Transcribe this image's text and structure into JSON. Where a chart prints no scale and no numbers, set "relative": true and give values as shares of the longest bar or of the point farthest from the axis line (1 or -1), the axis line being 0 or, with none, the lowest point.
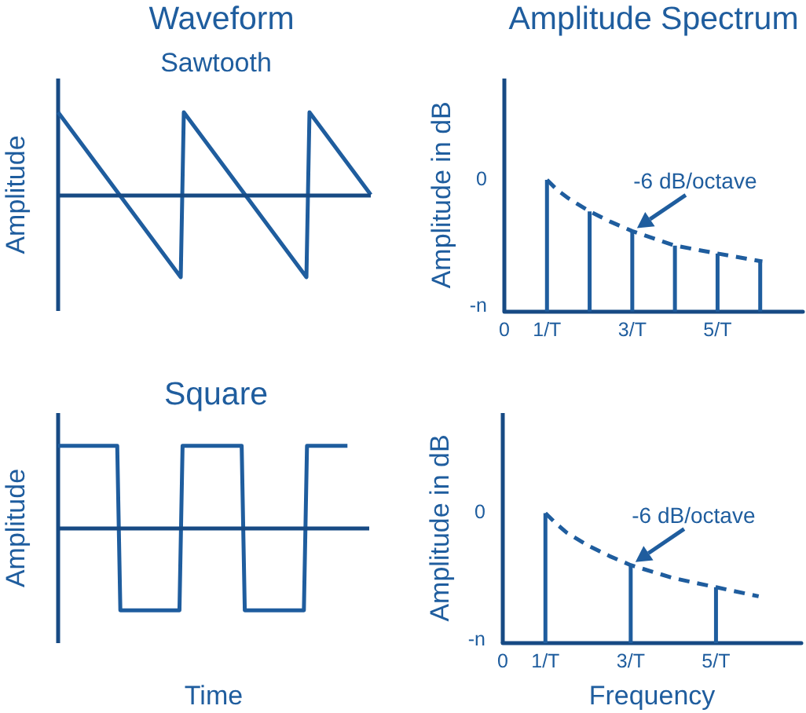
{
  "chart_data": [
    {
      "type": "line",
      "title": "Waveform",
      "subtitle": "Sawtooth",
      "ylabel": "Amplitude",
      "relative": true,
      "ref_lines": [
        {
          "axis": "y",
          "value": 0
        }
      ],
      "categories": [
        null,
        null,
        null,
        null,
        null,
        null,
        null,
        null,
        null,
        null,
        null,
        null,
        null,
        null,
        null,
        null,
        null,
        null,
        null,
        null,
        null,
        null,
        null,
        null,
        null,
        null,
        null,
        null,
        null,
        null,
        null,
        null,
        null,
        null,
        null,
        null,
        null,
        null,
        null,
        null,
        null,
        null,
        null,
        null,
        null,
        null,
        null,
        null,
        null,
        null,
        null,
        null,
        null,
        null,
        null,
        null,
        null,
        null,
        null,
        null,
        null,
        null,
        null,
        null,
        null,
        null,
        null,
        null,
        null,
        null,
        null,
        null,
        null,
        null,
        null,
        null,
        null,
        null,
        null,
        null,
        null,
        null,
        null,
        null,
        null,
        null,
        null,
        null,
        null,
        null,
        null,
        null,
        null,
        null,
        null,
        null,
        null,
        null,
        null,
        null,
        null,
        null,
        null
      ],
      "series": [
        {
          "color": "#1f5d9e",
          "values": [
            1,
            0.95,
            0.9,
            0.85,
            0.8,
            0.75,
            0.7,
            0.65,
            0.6,
            0.55,
            0.5,
            0.45,
            0.4,
            0.35,
            0.3,
            0.25,
            0.2,
            0.15,
            0.1,
            0.05,
            0,
            -0.05,
            -0.1,
            -0.15,
            -0.2,
            -0.25,
            -0.3,
            -0.35,
            -0.4,
            -0.45,
            -0.5,
            -0.55,
            -0.6,
            -0.65,
            -0.7,
            -0.75,
            -0.8,
            -0.85,
            -0.9,
            -0.95,
            -1,
            1,
            0.95,
            0.9,
            0.85,
            0.8,
            0.75,
            0.7,
            0.65,
            0.6,
            0.55,
            0.5,
            0.45,
            0.4,
            0.35,
            0.3,
            0.25,
            0.2,
            0.15,
            0.1,
            0.05,
            0,
            -0.05,
            -0.1,
            -0.15,
            -0.2,
            -0.25,
            -0.3,
            -0.35,
            -0.4,
            -0.45,
            -0.5,
            -0.55,
            -0.6,
            -0.65,
            -0.7,
            -0.75,
            -0.8,
            -0.85,
            -0.9,
            -0.95,
            -1,
            1,
            0.95,
            0.9,
            0.85,
            0.8,
            0.75,
            0.7,
            0.65,
            0.6,
            0.55,
            0.5,
            0.45,
            0.4,
            0.35,
            0.3,
            0.25,
            0.2,
            0.15,
            0.1,
            0.05,
            0
          ]
        }
      ]
    },
    {
      "type": "bar",
      "title": "Amplitude Spectrum",
      "ylabel": "Amplitude in dB",
      "relative": true,
      "x": [
        1,
        2,
        3,
        4,
        5,
        6
      ],
      "xlim": [
        0,
        7
      ],
      "xticks": [
        0,
        {
          "value": 1,
          "label": "1/T"
        },
        {
          "value": 3,
          "label": "3/T"
        },
        {
          "value": 5,
          "label": "5/T"
        }
      ],
      "line_style": "dashed",
      "series": [
        {
          "color": "#1f5d9e",
          "values": [
            1,
            0.76,
            0.61,
            0.5,
            0.44,
            0.38
          ]
        },
        {
          "type": "line",
          "color": "#1f5d9e",
          "x": [
            1,
            1.25,
            1.5,
            2,
            2.5,
            3,
            4,
            5,
            6.05
          ],
          "values": [
            1,
            0.92,
            0.86,
            0.76,
            0.68,
            0.61,
            0.5,
            0.44,
            0.38
          ]
        }
      ],
      "annotations": [
        "0",
        "-n",
        {
          "text": "-6 dB/octave",
          "x": 3,
          "y": 0.61
        }
      ]
    },
    {
      "type": "line",
      "title": "Square",
      "xlabel": "Time",
      "ylabel": "Amplitude",
      "relative": true,
      "ref_lines": [
        {
          "axis": "y",
          "value": 0
        }
      ],
      "categories": [
        null,
        null,
        null,
        null,
        null,
        null,
        null,
        null,
        null,
        null,
        null,
        null,
        null,
        null,
        null,
        null,
        null,
        null,
        null,
        null,
        null,
        null,
        null,
        null,
        null,
        null,
        null,
        null,
        null,
        null,
        null,
        null,
        null,
        null,
        null,
        null,
        null,
        null,
        null,
        null,
        null,
        null,
        null,
        null,
        null,
        null,
        null,
        null,
        null,
        null,
        null,
        null,
        null,
        null,
        null,
        null,
        null,
        null,
        null,
        null,
        null,
        null,
        null,
        null,
        null,
        null,
        null,
        null,
        null,
        null,
        null,
        null,
        null,
        null,
        null,
        null,
        null,
        null,
        null,
        null,
        null,
        null,
        null,
        null,
        null,
        null,
        null,
        null,
        null,
        null,
        null,
        null,
        null,
        null,
        null,
        null,
        null,
        null,
        null,
        null,
        null
      ],
      "series": [
        {
          "color": "#1f5d9e",
          "values": [
            1,
            1,
            1,
            1,
            1,
            1,
            1,
            1,
            1,
            1,
            1,
            1,
            1,
            1,
            1,
            1,
            1,
            1,
            1,
            1,
            -1,
            -1,
            -1,
            -1,
            -1,
            -1,
            -1,
            -1,
            -1,
            -1,
            -1,
            -1,
            -1,
            -1,
            -1,
            -1,
            -1,
            -1,
            -1,
            -1,
            1,
            1,
            1,
            1,
            1,
            1,
            1,
            1,
            1,
            1,
            1,
            1,
            1,
            1,
            1,
            1,
            1,
            1,
            1,
            1,
            -1,
            -1,
            -1,
            -1,
            -1,
            -1,
            -1,
            -1,
            -1,
            -1,
            -1,
            -1,
            -1,
            -1,
            -1,
            -1,
            -1,
            -1,
            -1,
            -1,
            1,
            1,
            1,
            1,
            1,
            1,
            1,
            1,
            1,
            1,
            1,
            1,
            1,
            1,
            null,
            null,
            null,
            null,
            null,
            null,
            null
          ]
        }
      ]
    },
    {
      "type": "bar",
      "xlabel": "Frequency",
      "ylabel": "Amplitude in dB",
      "relative": true,
      "x": [
        1,
        3,
        5
      ],
      "xlim": [
        0,
        7
      ],
      "xticks": [
        0,
        {
          "value": 1,
          "label": "1/T"
        },
        {
          "value": 3,
          "label": "3/T"
        },
        {
          "value": 5,
          "label": "5/T"
        }
      ],
      "line_style": "dashed",
      "series": [
        {
          "color": "#1f5d9e",
          "values": [
            1,
            0.6,
            0.43
          ]
        },
        {
          "type": "line",
          "color": "#1f5d9e",
          "x": [
            1,
            1.25,
            1.5,
            2,
            2.5,
            3,
            4,
            5,
            6
          ],
          "values": [
            1,
            0.92,
            0.85,
            0.75,
            0.67,
            0.6,
            0.5,
            0.43,
            0.36
          ]
        }
      ],
      "annotations": [
        "0",
        "-n",
        {
          "text": "-6 dB/octave",
          "x": 3,
          "y": 0.6
        }
      ]
    }
  ]
}
